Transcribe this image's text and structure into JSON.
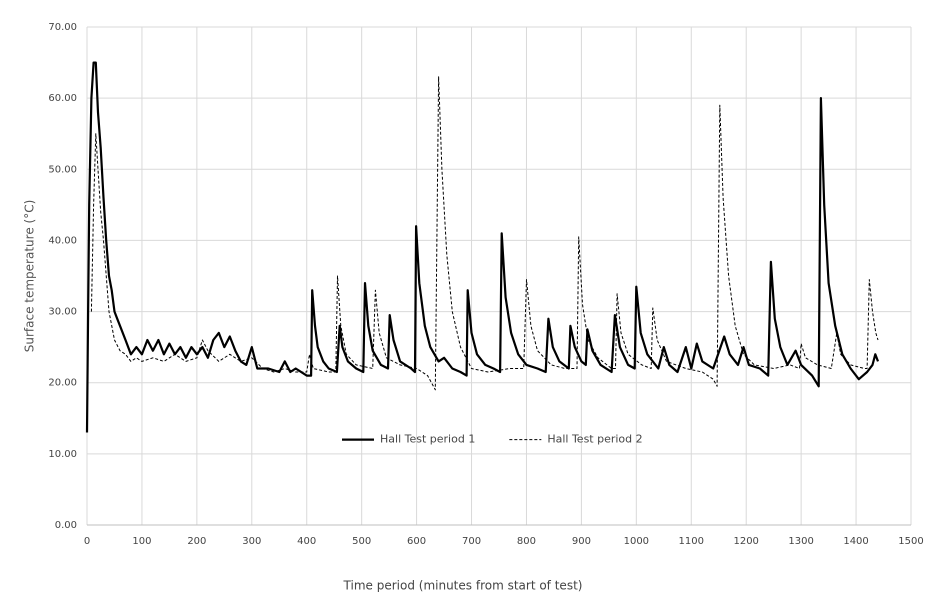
{
  "chart_data": {
    "type": "line",
    "xlabel": "Time period (minutes from start of test)",
    "ylabel": "Surface temperature (°C)",
    "xlim": [
      0,
      1500
    ],
    "xticks": [
      0,
      100,
      200,
      300,
      400,
      500,
      600,
      700,
      800,
      900,
      1000,
      1100,
      1200,
      1300,
      1400,
      1500
    ],
    "ylim": [
      0,
      70
    ],
    "yticks": [
      {
        "value": 0,
        "label": "0.00"
      },
      {
        "value": 10,
        "label": "10.00"
      },
      {
        "value": 20,
        "label": "20.00"
      },
      {
        "value": 30,
        "label": "30.00"
      },
      {
        "value": 40,
        "label": "40.00"
      },
      {
        "value": 50,
        "label": "50.00"
      },
      {
        "value": 60,
        "label": "60.00"
      },
      {
        "value": 70,
        "label": "70.00"
      }
    ],
    "grid": true,
    "legend": "center",
    "series": [
      {
        "name": "Hall Test period 1",
        "color": "#000000",
        "dashed": false,
        "width": 2.2,
        "x": [
          0,
          2,
          4,
          8,
          12,
          16,
          20,
          25,
          30,
          35,
          40,
          45,
          50,
          55,
          60,
          70,
          80,
          90,
          100,
          110,
          120,
          130,
          140,
          150,
          160,
          170,
          180,
          190,
          200,
          210,
          220,
          230,
          240,
          250,
          260,
          270,
          280,
          290,
          300,
          310,
          330,
          350,
          360,
          370,
          380,
          400,
          408,
          410,
          415,
          420,
          430,
          440,
          455,
          460,
          465,
          475,
          490,
          503,
          506,
          512,
          520,
          535,
          548,
          551,
          558,
          570,
          590,
          597,
          599,
          605,
          615,
          625,
          640,
          650,
          665,
          680,
          691,
          693,
          700,
          710,
          725,
          740,
          752,
          755,
          762,
          772,
          785,
          800,
          820,
          835,
          840,
          848,
          860,
          877,
          880,
          888,
          900,
          908,
          911,
          920,
          935,
          955,
          961,
          970,
          985,
          997,
          1000,
          1008,
          1020,
          1040,
          1050,
          1060,
          1075,
          1090,
          1100,
          1110,
          1120,
          1140,
          1160,
          1170,
          1185,
          1195,
          1205,
          1225,
          1240,
          1245,
          1252,
          1262,
          1275,
          1290,
          1300,
          1320,
          1332,
          1336,
          1342,
          1350,
          1362,
          1375,
          1390,
          1405,
          1420,
          1430,
          1435,
          1440
        ],
        "values": [
          13,
          30,
          45,
          60,
          65,
          65,
          58,
          53,
          46,
          40,
          35,
          33,
          30,
          29,
          28,
          26,
          24,
          25,
          24,
          26,
          24.5,
          26,
          24,
          25.5,
          24,
          25,
          23.5,
          25,
          24,
          25,
          23.5,
          26,
          27,
          25,
          26.5,
          24.5,
          23,
          22.5,
          25,
          22,
          22,
          21.5,
          23,
          21.5,
          22,
          21,
          21,
          33,
          28,
          25,
          23,
          22,
          21.5,
          28,
          25,
          23,
          22,
          21.5,
          34,
          28,
          24.5,
          22.5,
          22,
          29.5,
          26,
          23,
          22,
          21.5,
          42,
          34,
          28,
          25,
          23,
          23.5,
          22,
          21.5,
          21,
          33,
          27,
          24,
          22.5,
          22,
          21.5,
          41,
          32,
          27,
          24,
          22.5,
          22,
          21.5,
          29,
          25,
          23,
          22,
          28,
          25,
          23,
          22.5,
          27.5,
          24.5,
          22.5,
          21.5,
          29.5,
          25,
          22.5,
          22,
          33.5,
          27,
          24,
          22,
          25,
          22.5,
          21.5,
          25,
          22,
          25.5,
          23,
          22,
          26.5,
          24,
          22.5,
          25,
          22.5,
          22,
          21,
          37,
          29,
          25,
          22.5,
          24.5,
          22.5,
          21,
          19.5,
          60,
          45,
          34,
          28,
          24,
          22,
          20.5,
          21.5,
          22.5,
          24,
          23
        ]
      },
      {
        "name": "Hall Test period 2",
        "color": "#000000",
        "dashed": true,
        "width": 1,
        "x": [
          8,
          12,
          16,
          20,
          25,
          30,
          40,
          50,
          60,
          70,
          80,
          90,
          100,
          120,
          140,
          160,
          180,
          200,
          210,
          220,
          240,
          260,
          280,
          300,
          320,
          340,
          360,
          380,
          400,
          405,
          412,
          440,
          453,
          456,
          462,
          472,
          490,
          520,
          525,
          532,
          545,
          570,
          600,
          620,
          634,
          640,
          646,
          655,
          665,
          680,
          700,
          730,
          770,
          795,
          800,
          808,
          820,
          845,
          870,
          892,
          895,
          902,
          912,
          930,
          955,
          962,
          965,
          972,
          985,
          1010,
          1027,
          1030,
          1038,
          1055,
          1090,
          1120,
          1140,
          1147,
          1152,
          1158,
          1168,
          1180,
          1195,
          1215,
          1250,
          1280,
          1297,
          1300,
          1308,
          1330,
          1355,
          1365,
          1372,
          1390,
          1415,
          1420,
          1424,
          1430,
          1436,
          1440
        ],
        "values": [
          30,
          45,
          55,
          50,
          44,
          40,
          30,
          26,
          24.5,
          24,
          23,
          23.5,
          23,
          23.5,
          23,
          24,
          23,
          23.5,
          26,
          24.5,
          23,
          24,
          23,
          23.5,
          22,
          21.5,
          22,
          21.5,
          21.5,
          24,
          22,
          21.5,
          21.5,
          35,
          28,
          24,
          22.5,
          22,
          33,
          27,
          23.5,
          22.5,
          22,
          21,
          19,
          63,
          50,
          38,
          30,
          25,
          22,
          21.5,
          22,
          22,
          34.5,
          28,
          24.5,
          22.5,
          22,
          22,
          40.5,
          31,
          26,
          23.5,
          22,
          22,
          32.5,
          27,
          24,
          22.5,
          22,
          30.5,
          26,
          23,
          22,
          21.5,
          20.5,
          19.5,
          59,
          46,
          35,
          28,
          24,
          22.5,
          22,
          22.5,
          22,
          25.5,
          23.5,
          22.5,
          22,
          27,
          24,
          22.5,
          22,
          22,
          34.5,
          30,
          27,
          26
        ]
      }
    ]
  }
}
